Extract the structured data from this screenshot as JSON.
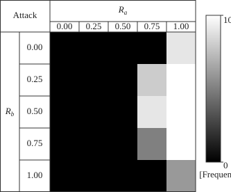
{
  "chart_data": {
    "type": "heatmap",
    "title": "Attack",
    "x_label": "R",
    "x_label_subscript": "a",
    "y_label": "R",
    "y_label_subscript": "b",
    "x": [
      "0.00",
      "0.25",
      "0.50",
      "0.75",
      "1.00"
    ],
    "y": [
      "0.00",
      "0.25",
      "0.50",
      "0.75",
      "1.00"
    ],
    "values": [
      [
        0,
        0,
        0,
        0,
        9
      ],
      [
        0,
        0,
        0,
        8,
        10
      ],
      [
        0,
        0,
        0,
        9,
        10
      ],
      [
        0,
        0,
        0,
        5,
        10
      ],
      [
        0,
        0,
        0,
        0,
        6
      ]
    ],
    "colormap": [
      "#000000",
      "#ffffff"
    ],
    "clim": [
      0,
      10
    ],
    "cticks": [
      0,
      10
    ],
    "colorbar_label": "[Frequency]"
  }
}
